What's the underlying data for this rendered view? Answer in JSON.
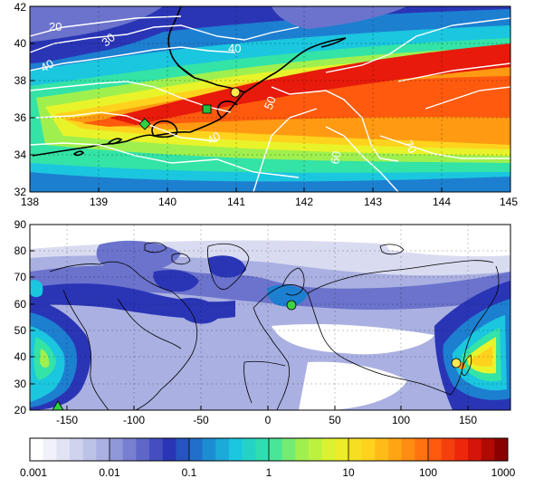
{
  "top_panel": {
    "x_ticks": [
      "138",
      "139",
      "140",
      "141",
      "142",
      "143",
      "144",
      "145"
    ],
    "y_ticks": [
      "32",
      "34",
      "36",
      "38",
      "40",
      "42"
    ],
    "contour_labels": [
      "20",
      "30",
      "40",
      "40",
      "40",
      "50",
      "60",
      "70"
    ]
  },
  "bottom_panel": {
    "x_ticks": [
      "-150",
      "-100",
      "-50",
      "0",
      "50",
      "100",
      "150"
    ],
    "y_ticks": [
      "20",
      "30",
      "40",
      "50",
      "60",
      "70",
      "80",
      "90"
    ]
  },
  "colorbar": {
    "labels": [
      "0.001",
      "0.01",
      "0.1",
      "1",
      "10",
      "100",
      "1000"
    ],
    "colors": [
      "#ffffff",
      "#d9dcf1",
      "#aab0e1",
      "#6b73cc",
      "#2a35b6",
      "#1d7fd0",
      "#1bc6df",
      "#34e3a6",
      "#9ff04f",
      "#e9f32a",
      "#ffd21e",
      "#ff9a12",
      "#ff5a0e",
      "#e71a0b",
      "#8b0000"
    ]
  },
  "markers": {
    "top": [
      {
        "name": "yellow-circle",
        "lon": 141.0,
        "lat": 37.4,
        "color": "#ffe94a"
      },
      {
        "name": "green-square",
        "lon": 140.6,
        "lat": 36.5,
        "color": "#20c040"
      },
      {
        "name": "green-diamond",
        "lon": 139.7,
        "lat": 35.7,
        "color": "#30d040"
      }
    ],
    "bottom": [
      {
        "name": "yellow-circle",
        "lon": 141.0,
        "lat": 37.4,
        "color": "#ffe94a"
      },
      {
        "name": "green-circle",
        "lon": 18.0,
        "lat": 59.3,
        "color": "#40d040"
      },
      {
        "name": "green-triangle",
        "lon": -156.0,
        "lat": 20.8,
        "color": "#30d040"
      }
    ]
  }
}
